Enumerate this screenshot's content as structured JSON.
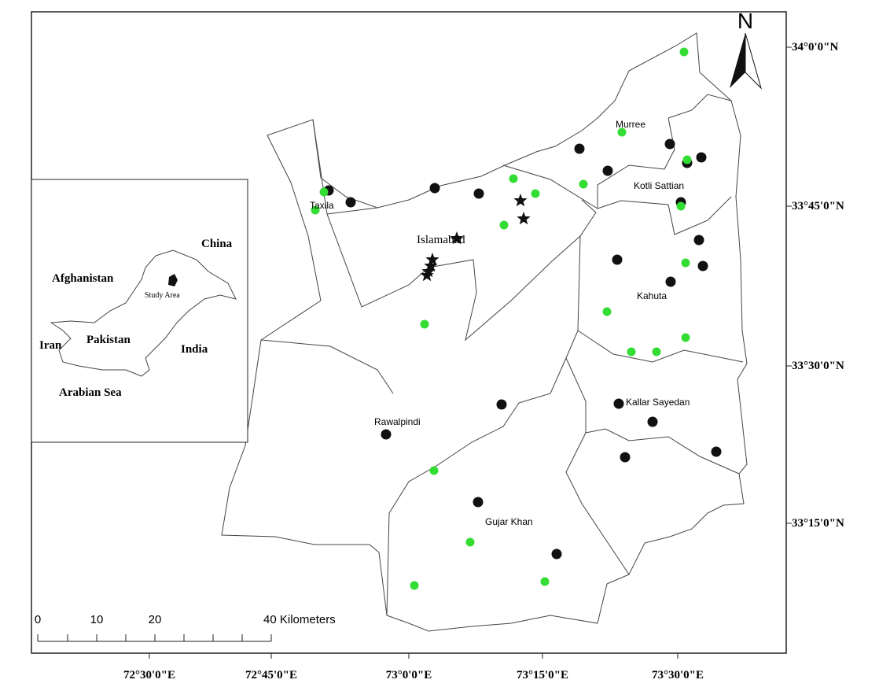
{
  "north_arrow": {
    "label": "N"
  },
  "latitude_labels": [
    "34°0'0\"N",
    "33°45'0\"N",
    "33°30'0\"N",
    "33°15'0\"N"
  ],
  "longitude_labels": [
    "72°30'0\"E",
    "72°45'0\"E",
    "73°0'0\"E",
    "73°15'0\"E",
    "73°30'0\"E"
  ],
  "places": [
    "Murree",
    "Kotli Sattian",
    "Taxila",
    "Islamabad",
    "Kahuta",
    "Kallar Sayedan",
    "Rawalpindi",
    "Gujar Khan"
  ],
  "inset": {
    "labels": [
      "China",
      "Afghanistan",
      "Pakistan",
      "Study Area",
      "Iran",
      "India",
      "Arabian Sea"
    ]
  },
  "scale_bar": {
    "labels": [
      "0",
      "10",
      "20",
      "40 Kilometers"
    ]
  }
}
